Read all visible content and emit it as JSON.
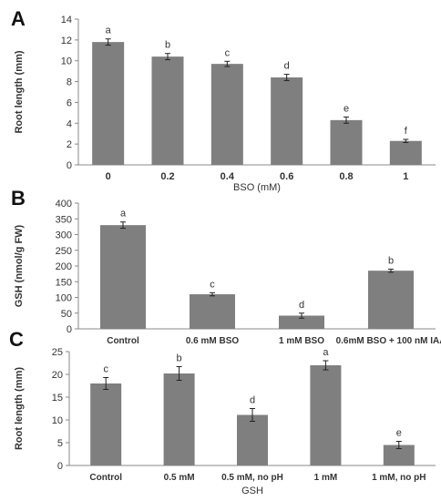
{
  "chart_data": [
    {
      "panel": "A",
      "type": "bar",
      "categories": [
        "0",
        "0.2",
        "0.4",
        "0.6",
        "0.8",
        "1"
      ],
      "values": [
        11.8,
        10.4,
        9.7,
        8.4,
        4.3,
        2.3
      ],
      "errors": [
        0.3,
        0.3,
        0.25,
        0.3,
        0.3,
        0.15
      ],
      "letters": [
        "a",
        "b",
        "c",
        "d",
        "e",
        "f"
      ],
      "xlabel": "BSO (mM)",
      "ylabel": "Root length (mm)",
      "ylim": [
        0,
        14
      ],
      "yticks": [
        0,
        2,
        4,
        6,
        8,
        10,
        12,
        14
      ],
      "grid": false
    },
    {
      "panel": "B",
      "type": "bar",
      "categories": [
        "Control",
        "0.6 mM BSO",
        "1 mM  BSO",
        "0.6mM BSO + 100 nM IAA"
      ],
      "values": [
        330,
        110,
        42,
        185
      ],
      "errors": [
        10,
        5,
        8,
        5
      ],
      "letters": [
        "a",
        "c",
        "d",
        "b"
      ],
      "xlabel": "",
      "ylabel": "GSH (nmol/g FW)",
      "ylim": [
        0,
        400
      ],
      "yticks": [
        0,
        50,
        100,
        150,
        200,
        250,
        300,
        350,
        400
      ],
      "grid": false
    },
    {
      "panel": "C",
      "type": "bar",
      "categories": [
        "Control",
        "0.5 mM",
        "0.5 mM, no pH",
        "1 mM",
        "1 mM, no pH"
      ],
      "values": [
        18,
        20.2,
        11.1,
        22,
        4.5
      ],
      "errors": [
        1.3,
        1.5,
        1.4,
        1.0,
        0.8
      ],
      "letters": [
        "c",
        "b",
        "d",
        "a",
        "e"
      ],
      "xlabel": "GSH",
      "ylabel": "Root length (mm)",
      "ylim": [
        0,
        25
      ],
      "yticks": [
        0,
        5,
        10,
        15,
        20,
        25
      ],
      "grid": false
    }
  ],
  "style": {
    "bar_color": "#7f7f7f",
    "axis_color": "#888888",
    "text_color": "#333333"
  }
}
